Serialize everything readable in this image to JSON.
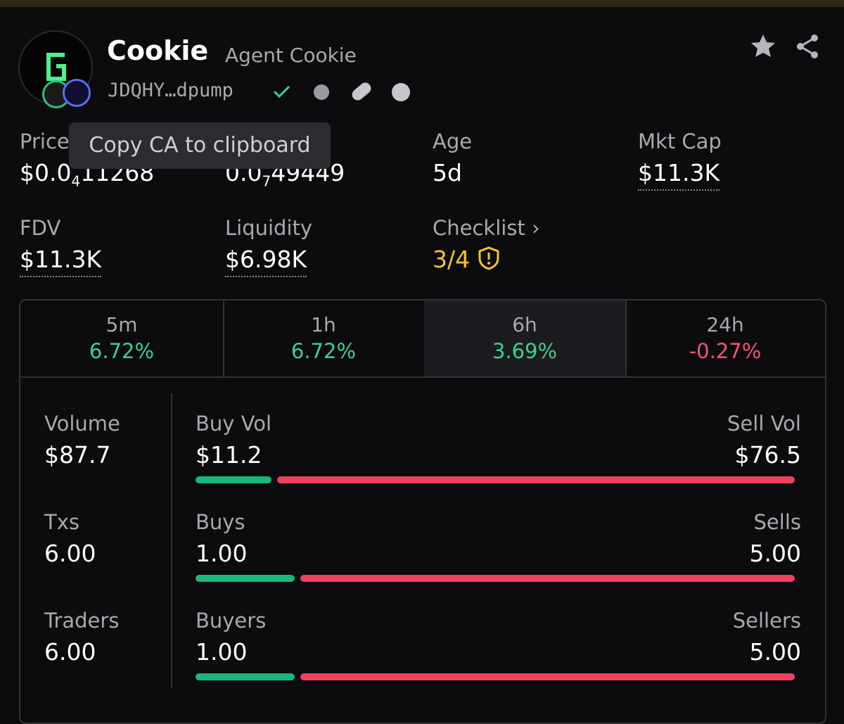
{
  "header": {
    "name": "Cookie",
    "full_name": "Agent Cookie",
    "address": "JDQHY…dpump"
  },
  "tooltip": "Copy CA to clipboard",
  "stats": [
    {
      "label": "Price",
      "value": {
        "prefix": "$0.0",
        "zeros": "4",
        "digits": "11268"
      }
    },
    {
      "value": {
        "prefix": "0.0",
        "zeros": "7",
        "digits": "49449"
      }
    },
    {
      "label": "Age",
      "value": "5d"
    },
    {
      "label": "Mkt Cap",
      "value": "$11.3K"
    },
    {
      "label": "FDV",
      "value": "$11.3K"
    },
    {
      "label": "Liquidity",
      "value": "$6.98K"
    },
    {
      "label": "Checklist",
      "value": "3/4"
    }
  ],
  "tabs": [
    {
      "label": "5m",
      "change": "6.72%"
    },
    {
      "label": "1h",
      "change": "6.72%"
    },
    {
      "label": "6h",
      "change": "3.69%"
    },
    {
      "label": "24h",
      "change": "-0.27%"
    }
  ],
  "summary": [
    {
      "label": "Volume",
      "value": "$87.7"
    },
    {
      "label": "Txs",
      "value": "6.00"
    },
    {
      "label": "Traders",
      "value": "6.00"
    }
  ],
  "split": [
    {
      "left_label": "Buy Vol",
      "left_value": "$11.2",
      "right_label": "Sell Vol",
      "right_value": "$76.5"
    },
    {
      "left_label": "Buys",
      "left_value": "1.00",
      "right_label": "Sells",
      "right_value": "5.00"
    },
    {
      "left_label": "Buyers",
      "left_value": "1.00",
      "right_label": "Sellers",
      "right_value": "5.00"
    }
  ]
}
